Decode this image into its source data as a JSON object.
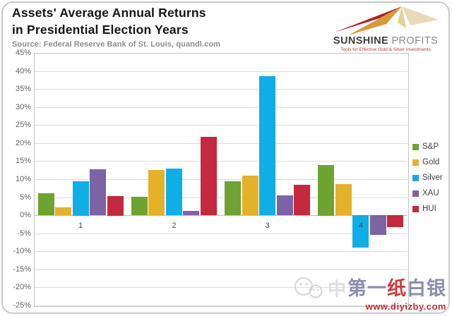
{
  "header": {
    "title_line1": "Assets' Average Annual Returns",
    "title_line2": "in Presidential Election Years",
    "source": "Source: Federal Reserve Bank of St. Louis, quandl.com"
  },
  "logo": {
    "brand_primary": "SUNSHINE",
    "brand_secondary": "PROFITS",
    "tagline": "Tools for Effective Gold & Silver Investments",
    "colors": {
      "blade_red": "#ad2024",
      "blade_gold": "#d79a3b",
      "blade_pale": "#e9d9b8",
      "tagline": "#c0392b"
    }
  },
  "chart_data": {
    "type": "bar",
    "title": "Assets' Average Annual Returns in Presidential Election Years",
    "categories": [
      "1",
      "2",
      "3",
      "4"
    ],
    "series": [
      {
        "name": "S&P",
        "color": "#6fa32f",
        "values": [
          6.0,
          5.1,
          9.4,
          14.0
        ]
      },
      {
        "name": "Gold",
        "color": "#e3b229",
        "values": [
          2.1,
          12.6,
          11.0,
          8.7
        ]
      },
      {
        "name": "Silver",
        "color": "#0faee6",
        "values": [
          9.5,
          13.0,
          38.5,
          -8.9
        ]
      },
      {
        "name": "XAU",
        "color": "#7c63a5",
        "values": [
          12.7,
          1.2,
          5.5,
          -5.4
        ]
      },
      {
        "name": "HUI",
        "color": "#c4293f",
        "values": [
          5.4,
          21.8,
          8.5,
          -3.4
        ]
      }
    ],
    "xlabel": "",
    "ylabel": "",
    "ylim": [
      -25,
      45
    ],
    "ytick_step": 5,
    "ytick_format": "percent",
    "grid": true,
    "legend_position": "right"
  },
  "watermark": {
    "faint_char": "中",
    "text_part1": "第一",
    "text_part2": "纸",
    "text_part3": "白银",
    "url": "www.diyizby.com",
    "colors": {
      "text": "#8d8dae",
      "accent": "#ce3a3c",
      "url": "#cc2a2a",
      "faint": "#d6d6d6"
    }
  }
}
